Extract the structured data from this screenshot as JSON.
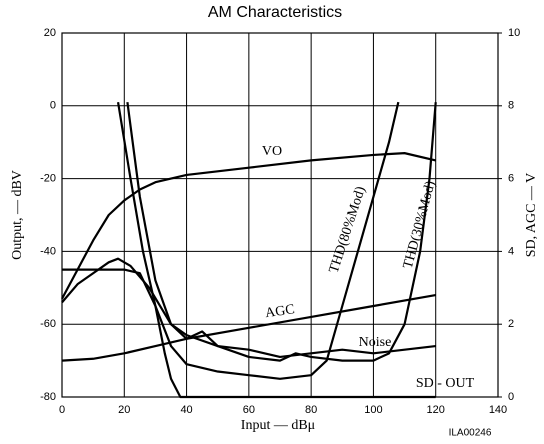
{
  "chart_data": {
    "type": "line",
    "title": "AM Characteristics",
    "x_label": "Input — dBμ",
    "y_label": "Output, — dBV",
    "y2_label": "SD, AGC — V",
    "annotation": "ILA00246",
    "xlim": [
      0,
      140
    ],
    "xticks": [
      0,
      20,
      40,
      60,
      80,
      100,
      120,
      140
    ],
    "ylim": [
      -80,
      20
    ],
    "yticks": [
      -80,
      -60,
      -40,
      -20,
      0,
      20
    ],
    "y2lim": [
      0,
      10
    ],
    "y2ticks": [
      0,
      2,
      4,
      6,
      8,
      10
    ],
    "grid": true,
    "series": [
      {
        "name": "VO",
        "color": "#000000",
        "x": [
          0,
          5,
          10,
          15,
          20,
          25,
          30,
          40,
          60,
          80,
          100,
          110,
          120
        ],
        "values": [
          -53,
          -45,
          -37,
          -30,
          -26,
          -23,
          -21,
          -19,
          -17,
          -15,
          -13.5,
          -13,
          -15
        ]
      },
      {
        "name": "THD(80%Mod)",
        "color": "#000000",
        "x": [
          18,
          22,
          26,
          30,
          35,
          40,
          50,
          60,
          70,
          80,
          85,
          90,
          95,
          100,
          105,
          108
        ],
        "values": [
          1,
          -20,
          -40,
          -55,
          -66,
          -71,
          -73,
          -74,
          -75,
          -74,
          -70,
          -55,
          -40,
          -25,
          -10,
          1
        ]
      },
      {
        "name": "THD(30%Mod)",
        "color": "#000000",
        "x": [
          21,
          25,
          30,
          35,
          40,
          45,
          50,
          60,
          70,
          75,
          80,
          90,
          100,
          105,
          110,
          115,
          118,
          120
        ],
        "values": [
          1,
          -25,
          -48,
          -60,
          -64,
          -62,
          -66,
          -69,
          -70,
          -68,
          -69,
          -70,
          -70,
          -68,
          -60,
          -40,
          -20,
          1
        ]
      },
      {
        "name": "Noise",
        "color": "#000000",
        "x": [
          0,
          5,
          10,
          15,
          18,
          22,
          28,
          35,
          40,
          50,
          60,
          70,
          80,
          90,
          100,
          110,
          120
        ],
        "values": [
          -54,
          -49,
          -46,
          -43,
          -42,
          -44,
          -50,
          -60,
          -63,
          -66,
          -67,
          -69,
          -68,
          -67,
          -68,
          -67,
          -66
        ]
      },
      {
        "name": "AGC",
        "color": "#000000",
        "axis": "y2",
        "x": [
          0,
          10,
          20,
          30,
          40,
          60,
          80,
          100,
          120
        ],
        "values": [
          1.0,
          1.05,
          1.2,
          1.4,
          1.6,
          1.9,
          2.2,
          2.5,
          2.8
        ]
      },
      {
        "name": "SD - OUT",
        "color": "#000000",
        "axis": "y2",
        "x": [
          0,
          10,
          20,
          25,
          30,
          33,
          35,
          38,
          40,
          60,
          80,
          100,
          120
        ],
        "values": [
          3.5,
          3.5,
          3.5,
          3.4,
          2.5,
          1.2,
          0.5,
          0,
          0,
          0,
          0,
          0,
          0
        ]
      }
    ]
  }
}
